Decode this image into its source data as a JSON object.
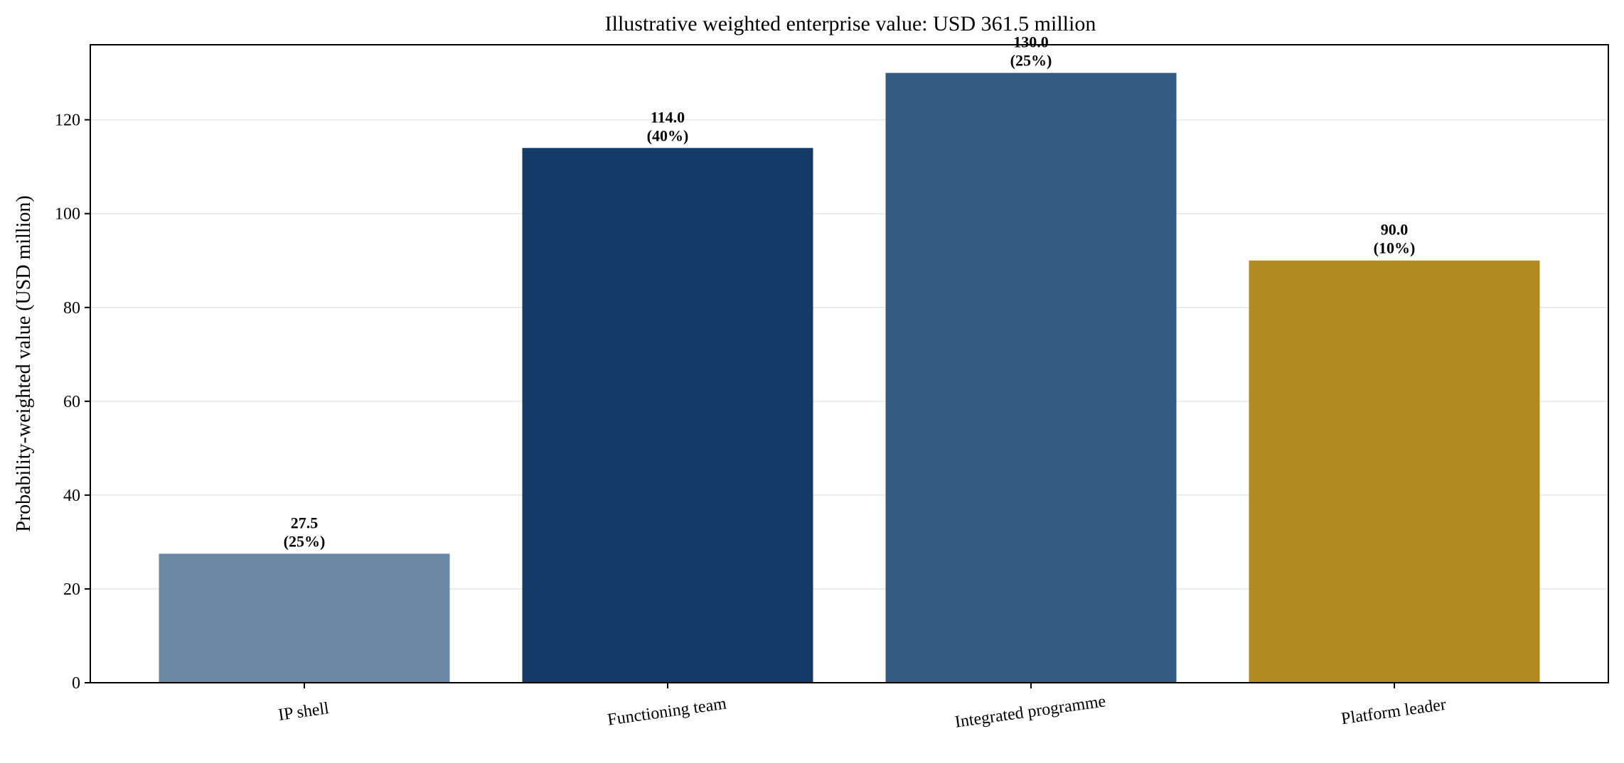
{
  "chart_data": {
    "type": "bar",
    "title": "Illustrative weighted enterprise value: USD 361.5 million",
    "xlabel": "",
    "ylabel": "Probability-weighted value (USD million)",
    "categories": [
      "IP shell",
      "Functioning team",
      "Integrated programme",
      "Platform leader"
    ],
    "values": [
      27.5,
      114.0,
      130.0,
      90.0
    ],
    "value_labels": [
      "27.5",
      "114.0",
      "130.0",
      "90.0"
    ],
    "probability_labels": [
      "(25%)",
      "(40%)",
      "(25%)",
      "(10%)"
    ],
    "colors": [
      "#6a89a5",
      "#143a68",
      "#325c84",
      "#b28a22"
    ],
    "ylim": [
      0,
      136
    ],
    "yticks": [
      0,
      20,
      40,
      60,
      80,
      100,
      120
    ],
    "grid": "y",
    "legend": "none"
  }
}
